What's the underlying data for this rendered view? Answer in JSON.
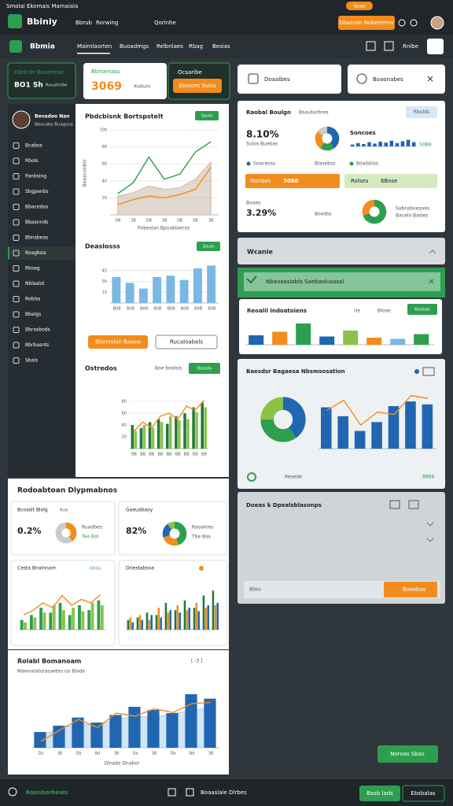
{
  "topbar": {
    "app_title": "Smolai Ekomais Mamaiala",
    "brand": "Bbiniy",
    "nav": [
      "Bbrub",
      "Rorwing",
      "Qorinhe"
    ],
    "badge": "Sbaie",
    "cta": "Dbahain Nobemmiv"
  },
  "navbar": {
    "brand": "Bbmia",
    "tabs": [
      "Mairnlaorten",
      "Buoadmgs",
      "Relbnlaes",
      "Rbag",
      "Besias"
    ],
    "right": "Rnibe"
  },
  "summary": [
    {
      "label": "Dbdcler Bosemlac",
      "value": "BO1 Sh",
      "sub": "Rouahnbe"
    },
    {
      "label": "Bbrseriass",
      "value": "3069",
      "sub": "Xodurs"
    },
    {
      "label": "Ocsaribe",
      "button": "Blooom Suiss"
    }
  ],
  "sidebar": {
    "name": "Bevadoo Nan",
    "role": "Bbocabs Buagosa",
    "items": [
      "Bcabos",
      "Rbols",
      "Panbsing",
      "Sbgpenbs",
      "Bbacedas",
      "Bbasnnds",
      "Bbnsbeas",
      "Roagbsis",
      "Rbsag",
      "Nblaslot",
      "Roblss",
      "Bbalgs",
      "Bbrasbods",
      "Bbrbasnts",
      "Sbais"
    ]
  },
  "panel": {
    "chart1_title": "Pbdcbisnk Bortspstelt",
    "chart1_button": "Sauis",
    "chart1_ylabel": "Beaaconblo",
    "chart1_xlabel": "Pobeslan Bpuablaerss",
    "chart2_title": "Deaslosss",
    "chart2_button": "Sauis",
    "primary_button": "Blonoslon Baeee",
    "secondary_button": "Rucaloabels",
    "chart3_title": "Ostredos",
    "chart3_note": "Boe bealsis",
    "chart3_button": "Blasdo"
  },
  "overview": {
    "title": "Rodoabtoan Dlypmabnos",
    "card1": {
      "title": "Bcoaslt Blolg",
      "tag": "Rue",
      "value": "0.2%",
      "labels": [
        "Ruadbes",
        "Tee Bol"
      ]
    },
    "card2": {
      "title": "Gaeuabaoy",
      "value": "82%",
      "labels": [
        "Raoalnes",
        "Tbe Bas"
      ]
    },
    "card3": {
      "title": "Cesta Bnalnnarn",
      "tag": "Ghsa"
    },
    "card4": {
      "title": "Driestabsoa"
    }
  },
  "trend": {
    "title": "Rolabl Bomanoam",
    "subtitle": "Nlaevalabslasaetes oa Blade",
    "range": "[ -3 ]",
    "xlabel": "Dlnabs Dnabor"
  },
  "right": {
    "buttons": [
      "Doaalbes",
      "Boaonabes"
    ],
    "stats": {
      "title": "Raobal Boulgn",
      "subtitle": "Bsaubarbres",
      "chip": "Rbubls",
      "value": "8.10%",
      "value_sub": "Sulos Buebas",
      "legend": "Soncoes",
      "legend_value": "S0B8",
      "row": [
        "Soaceoss",
        "Blasebss",
        "Boalsblss"
      ],
      "bar1": "Nonbes",
      "bar1_value": "3080",
      "bar2": "Rolses",
      "bar2_value": "6Bose",
      "value2": "3.29%",
      "value2_label": "Boaes",
      "value2_sub": "Boadss",
      "notes": [
        "Sabnsboesaes",
        "Bacelo Basles"
      ]
    },
    "accordion": "Wcanie",
    "alert": "Nbaoaasiobls Saebaolusasal",
    "indicators": {
      "title": "Reoalil Indoatoiens",
      "tab1": "Ue",
      "tab2": "Blose",
      "button": "Rasbas"
    },
    "analysis": {
      "title": "Baesdsr Bagaesa Nbsmsosation",
      "footer": "Resede",
      "footer_value": "8888"
    },
    "details": {
      "title": "Doeas k Dpealsblasonps",
      "field": "Bbso",
      "button": "Baesbas"
    },
    "action": "Noroas Sbas"
  },
  "footer": {
    "brand": "Rasnborbeals",
    "text": "Boaaslaie Dlrbes",
    "buttons": [
      "Basb lads",
      "Ebsbalas"
    ]
  },
  "charts": {
    "main_area": {
      "type": "line",
      "categories": [
        "D8",
        "3B",
        "DB",
        "3B",
        "DB",
        "5B",
        "3B"
      ],
      "ylim": [
        0,
        100
      ],
      "yticks": [
        20,
        40,
        60,
        80,
        100
      ],
      "series": [
        {
          "style": "area",
          "color": "#c9b8a8",
          "values": [
            22,
            26,
            34,
            30,
            32,
            42,
            62
          ]
        },
        {
          "style": "line",
          "color": "#2e9e4f",
          "values": [
            25,
            38,
            68,
            42,
            48,
            74,
            86
          ]
        },
        {
          "style": "line",
          "color": "#f28c1c",
          "values": [
            12,
            18,
            22,
            20,
            24,
            30,
            56
          ]
        }
      ]
    },
    "bars1": {
      "type": "bar",
      "categories": [
        "B0B",
        "B0B",
        "B0B",
        "B0B",
        "B0B",
        "B0B",
        "B0B",
        "B0B"
      ],
      "ylim": [
        0,
        60
      ],
      "yticks": [
        15,
        30,
        45
      ],
      "series": [
        {
          "style": "bar",
          "color": "#7ab8e3",
          "values": [
            36,
            28,
            20,
            36,
            38,
            32,
            48,
            52
          ]
        }
      ]
    },
    "combo1": {
      "type": "bar",
      "categories": [
        "BB",
        "BB",
        "BB",
        "BB",
        "BB",
        "BB",
        "BB",
        "BB",
        "BB"
      ],
      "ylim": [
        0,
        100
      ],
      "yticks": [
        20,
        40,
        60,
        80
      ],
      "series": [
        {
          "style": "bar",
          "color": "#1f7a3e",
          "values": [
            40,
            35,
            45,
            50,
            42,
            55,
            60,
            70,
            78
          ]
        },
        {
          "style": "bar",
          "color": "#8bc34a",
          "values": [
            30,
            40,
            35,
            45,
            55,
            48,
            50,
            62,
            70
          ]
        },
        {
          "style": "line",
          "color": "#f28c1c",
          "values": [
            30,
            45,
            35,
            55,
            60,
            50,
            72,
            65,
            82
          ]
        }
      ]
    },
    "donut_a": {
      "type": "donut",
      "values": [
        40,
        60
      ],
      "colors": [
        "#f28c1c",
        "#c8ccd0"
      ]
    },
    "donut_b": {
      "type": "donut",
      "values": [
        45,
        25,
        20,
        10
      ],
      "colors": [
        "#2e9e4f",
        "#f28c1c",
        "#2166b0",
        "#8bc34a"
      ]
    },
    "small_c": {
      "type": "bar",
      "ylim": [
        0,
        100
      ],
      "series": [
        {
          "style": "bar",
          "color": "#2e9e4f",
          "values": [
            20,
            30,
            45,
            35,
            55,
            30,
            50,
            40,
            60
          ]
        },
        {
          "style": "bar",
          "color": "#8bc34a",
          "values": [
            15,
            25,
            35,
            50,
            40,
            45,
            38,
            55,
            50
          ]
        },
        {
          "style": "line",
          "color": "#f28c1c",
          "values": [
            30,
            40,
            55,
            45,
            70,
            50,
            62,
            55,
            72
          ]
        }
      ]
    },
    "small_d": {
      "type": "bar",
      "ylim": [
        0,
        100
      ],
      "series": [
        {
          "style": "bar",
          "color": "#1f7a3e",
          "values": [
            20,
            25,
            35,
            30,
            55,
            40,
            60,
            45,
            70,
            80
          ]
        },
        {
          "style": "bar",
          "color": "#f28c1c",
          "values": [
            25,
            30,
            20,
            45,
            35,
            50,
            40,
            55,
            45,
            50
          ]
        },
        {
          "style": "bar",
          "color": "#2166b0",
          "values": [
            15,
            20,
            30,
            25,
            40,
            35,
            45,
            38,
            50,
            55
          ]
        }
      ]
    },
    "big_combo": {
      "type": "bar",
      "categories": [
        "Da",
        "3B",
        "Db",
        "Bd",
        "3B",
        "Da",
        "3B",
        "Db",
        "Bd",
        "3B"
      ],
      "ylim": [
        0,
        100
      ],
      "series": [
        {
          "style": "area",
          "color": "#a9cfee",
          "values": [
            20,
            30,
            38,
            35,
            45,
            50,
            48,
            55,
            58,
            65
          ]
        },
        {
          "style": "bar",
          "color": "#2166b0",
          "values": [
            25,
            35,
            48,
            40,
            52,
            65,
            60,
            55,
            85,
            78
          ]
        },
        {
          "style": "line",
          "color": "#f28c1c",
          "values": [
            10,
            28,
            45,
            32,
            55,
            50,
            62,
            56,
            70,
            72
          ]
        }
      ]
    },
    "right_donut1": {
      "type": "donut",
      "values": [
        40,
        20,
        25,
        15
      ],
      "colors": [
        "#2166b0",
        "#2e9e4f",
        "#f28c1c",
        "#c8ccd0"
      ]
    },
    "right_spark": {
      "type": "bar",
      "ylim": [
        0,
        100
      ],
      "series": [
        {
          "style": "bar",
          "color": "#2166b0",
          "values": [
            20,
            35,
            25,
            45,
            30,
            50,
            40,
            60,
            35,
            55,
            70,
            45
          ]
        }
      ]
    },
    "right_donut2": {
      "type": "donut",
      "values": [
        70,
        30
      ],
      "colors": [
        "#2e9e4f",
        "#f28c1c"
      ]
    },
    "indicators": {
      "type": "bar",
      "ylim": [
        0,
        100
      ],
      "series": [
        {
          "style": "bar",
          "color": "#2166b0",
          "colors": [
            "#2166b0",
            "#f28c1c",
            "#2e9e4f",
            "#2166b0",
            "#8bc34a",
            "#f28c1c",
            "#7ab8e3",
            "#2e9e4f"
          ],
          "values": [
            40,
            55,
            90,
            35,
            60,
            30,
            25,
            45
          ]
        }
      ]
    },
    "right_pie": {
      "type": "donut",
      "values": [
        40,
        35,
        25
      ],
      "colors": [
        "#2166b0",
        "#2e9e4f",
        "#8bc34a"
      ]
    },
    "right_combo": {
      "type": "bar",
      "ylim": [
        0,
        100
      ],
      "series": [
        {
          "style": "bar",
          "color": "#2166b0",
          "values": [
            70,
            55,
            30,
            45,
            72,
            80,
            75
          ]
        },
        {
          "style": "line",
          "color": "#f28c1c",
          "values": [
            65,
            82,
            40,
            62,
            58,
            90,
            85
          ]
        }
      ]
    }
  }
}
